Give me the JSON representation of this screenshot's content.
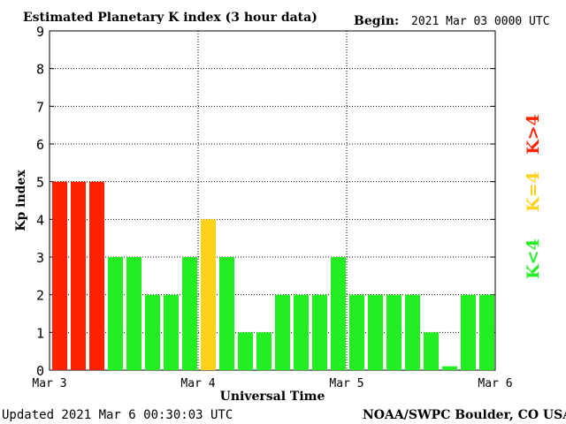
{
  "chart_data": {
    "type": "bar",
    "title": "Estimated Planetary K index (3 hour data)",
    "begin_label": "Begin:",
    "begin_value": "2021 Mar 03 0000 UTC",
    "ylabel": "Kp index",
    "xlabel": "Universal Time",
    "ylim": [
      0,
      9
    ],
    "yticks": [
      "0",
      "1",
      "2",
      "3",
      "4",
      "5",
      "6",
      "7",
      "8",
      "9"
    ],
    "xticks": [
      "Mar 3",
      "Mar 4",
      "Mar 5",
      "Mar 6"
    ],
    "grid": true,
    "bars_per_day": 8,
    "values": [
      5,
      5,
      5,
      3,
      3,
      2,
      2,
      3,
      4,
      3,
      1,
      1,
      2,
      2,
      2,
      3,
      2,
      2,
      2,
      2,
      1,
      0.1,
      2,
      2
    ],
    "legend": [
      {
        "label": "K>4",
        "color": "#ff2200"
      },
      {
        "label": "K=4",
        "color": "#ffd21a"
      },
      {
        "label": "K<4",
        "color": "#22ee22"
      }
    ],
    "colors": {
      "high": "#ff2200",
      "equal": "#ffd21a",
      "low": "#22ee22"
    }
  },
  "footer": {
    "updated": "Updated 2021 Mar  6 00:30:03 UTC",
    "source": "NOAA/SWPC Boulder, CO USA"
  }
}
